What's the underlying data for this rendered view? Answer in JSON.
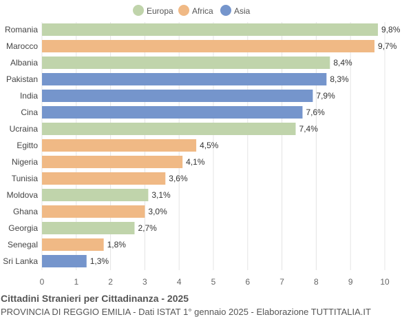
{
  "chart_data": {
    "type": "bar",
    "orientation": "horizontal",
    "title": "Cittadini Stranieri per Cittadinanza - 2025",
    "subtitle": "PROVINCIA DI REGGIO EMILIA - Dati ISTAT 1° gennaio 2025 - Elaborazione TUTTITALIA.IT",
    "legend": [
      {
        "name": "Europa",
        "color": "#c0d4ab"
      },
      {
        "name": "Africa",
        "color": "#f0b985"
      },
      {
        "name": "Asia",
        "color": "#7595cc"
      }
    ],
    "legend_position": "top",
    "categories": [
      "Romania",
      "Marocco",
      "Albania",
      "Pakistan",
      "India",
      "Cina",
      "Ucraina",
      "Egitto",
      "Nigeria",
      "Tunisia",
      "Moldova",
      "Ghana",
      "Georgia",
      "Senegal",
      "Sri Lanka"
    ],
    "values": [
      9.8,
      9.7,
      8.4,
      8.3,
      7.9,
      7.6,
      7.4,
      4.5,
      4.1,
      3.6,
      3.1,
      3.0,
      2.7,
      1.8,
      1.3
    ],
    "labels": [
      "9,8%",
      "9,7%",
      "8,4%",
      "8,3%",
      "7,9%",
      "7,6%",
      "7,4%",
      "4,5%",
      "4,1%",
      "3,6%",
      "3,1%",
      "3,0%",
      "2,7%",
      "1,8%",
      "1,3%"
    ],
    "groups": [
      "Europa",
      "Africa",
      "Europa",
      "Asia",
      "Asia",
      "Asia",
      "Europa",
      "Africa",
      "Africa",
      "Africa",
      "Europa",
      "Africa",
      "Europa",
      "Africa",
      "Asia"
    ],
    "xlim": [
      0,
      10
    ],
    "xticks": [
      "0",
      "1",
      "2",
      "3",
      "4",
      "5",
      "6",
      "7",
      "8",
      "9",
      "10"
    ],
    "grid": true
  }
}
